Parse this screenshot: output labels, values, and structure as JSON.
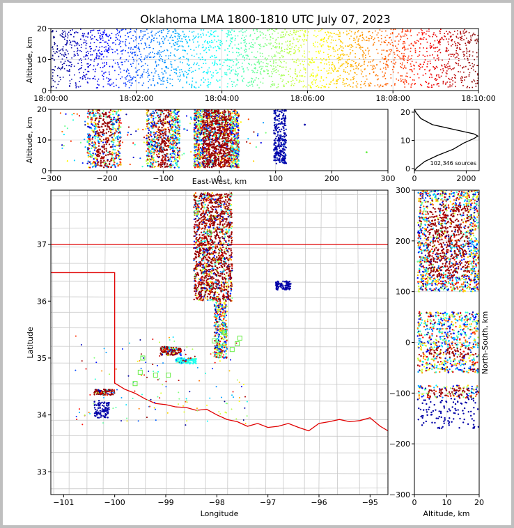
{
  "title": "Oklahoma LMA 1800-1810 UTC July 07, 2023",
  "colors": {
    "state_border": "#e00000",
    "county_line": "#c8c8c8",
    "grid": "#dcdcdc",
    "marker_green": "#66ee44"
  },
  "time_height": {
    "ylabel": "Altitude, km",
    "y_ticks": [
      "0",
      "10",
      "20"
    ],
    "x_ticks": [
      "18:00:00",
      "18:02:00",
      "18:04:00",
      "18:06:00",
      "18:08:00",
      "18:10:00"
    ]
  },
  "ew_height": {
    "ylabel": "Altitude, km",
    "xlabel": "East-West, km",
    "y_ticks": [
      "0",
      "10",
      "20"
    ],
    "x_ticks": [
      "−300",
      "−200",
      "−100",
      "0",
      "100",
      "200",
      "300"
    ]
  },
  "histogram": {
    "annotation": "102,346 sources",
    "y_ticks": [
      "0",
      "10",
      "20"
    ],
    "x_ticks": [
      "0",
      "2000"
    ]
  },
  "map": {
    "xlabel": "Longitude",
    "ylabel": "Latitude",
    "x_ticks": [
      "−101",
      "−100",
      "−99",
      "−98",
      "−97",
      "−96",
      "−95"
    ],
    "y_ticks": [
      "33",
      "34",
      "35",
      "36",
      "37"
    ]
  },
  "ns_height": {
    "xlabel": "Altitude, km",
    "ylabel": "North-South, km",
    "x_ticks": [
      "0",
      "10",
      "20"
    ],
    "y_ticks": [
      "−300",
      "−200",
      "−100",
      "0",
      "100",
      "200",
      "300"
    ]
  },
  "chart_data": [
    {
      "type": "scatter",
      "panel": "time-height",
      "xlabel": "",
      "ylabel": "Altitude, km",
      "xlim": [
        "18:00:00",
        "18:10:00"
      ],
      "ylim": [
        0,
        20
      ],
      "color_encodes": "time",
      "note": "dense sources 1–20 km altitude across whole period"
    },
    {
      "type": "scatter",
      "panel": "east-west vs altitude",
      "xlabel": "East-West, km",
      "ylabel": "Altitude, km",
      "xlim": [
        -300,
        300
      ],
      "ylim": [
        0,
        20
      ],
      "clusters_km": [
        {
          "ew": [
            -230,
            -180
          ],
          "alt": [
            3,
            20
          ]
        },
        {
          "ew": [
            -120,
            -80
          ],
          "alt": [
            2,
            20
          ]
        },
        {
          "ew": [
            -30,
            30
          ],
          "alt": [
            1,
            20
          ]
        },
        {
          "ew": [
            95,
            120
          ],
          "alt": [
            1,
            20
          ]
        }
      ]
    },
    {
      "type": "line",
      "panel": "altitude histogram",
      "x_range": [
        0,
        2500
      ],
      "ylim": [
        0,
        20
      ],
      "profile": [
        [
          0,
          0
        ],
        [
          100,
          1
        ],
        [
          400,
          3
        ],
        [
          900,
          5
        ],
        [
          1500,
          7
        ],
        [
          1900,
          9
        ],
        [
          2300,
          10.5
        ],
        [
          2450,
          11.3
        ],
        [
          2300,
          12
        ],
        [
          1500,
          13.5
        ],
        [
          700,
          15
        ],
        [
          250,
          17
        ],
        [
          60,
          19
        ],
        [
          0,
          20
        ]
      ],
      "total_sources": 102346
    },
    {
      "type": "scatter",
      "panel": "plan view map",
      "xlabel": "Longitude",
      "ylabel": "Latitude",
      "xlim": [
        -101.25,
        -94.65
      ],
      "ylim": [
        32.6,
        37.95
      ],
      "clusters_deg": [
        {
          "lon": [
            -98.45,
            -97.7
          ],
          "lat": [
            36.0,
            37.9
          ]
        },
        {
          "lon": [
            -98.0,
            -97.8
          ],
          "lat": [
            35.0,
            36.0
          ]
        },
        {
          "lon": [
            -99.1,
            -98.7
          ],
          "lat": [
            35.05,
            35.2
          ]
        },
        {
          "lon": [
            -98.8,
            -98.4
          ],
          "lat": [
            34.9,
            35.0
          ]
        },
        {
          "lon": [
            -100.4,
            -100.0
          ],
          "lat": [
            34.35,
            34.45
          ]
        },
        {
          "lon": [
            -100.4,
            -100.1
          ],
          "lat": [
            33.95,
            34.25
          ]
        },
        {
          "lon": [
            -96.85,
            -96.55
          ],
          "lat": [
            36.2,
            36.35
          ]
        }
      ]
    },
    {
      "type": "scatter",
      "panel": "altitude vs north-south",
      "xlabel": "Altitude, km",
      "ylabel": "North-South, km",
      "xlim": [
        0,
        20
      ],
      "ylim": [
        -300,
        300
      ]
    }
  ]
}
